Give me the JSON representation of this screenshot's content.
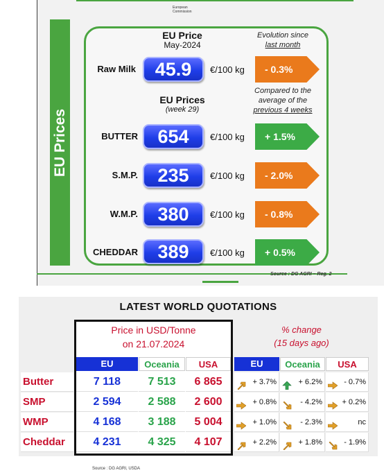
{
  "eu_panel": {
    "logo_line1": "European",
    "logo_line2": "Commission",
    "vertical_title": "EU Prices",
    "milk_header_line1": "EU Price",
    "milk_header_line2": "May-2024",
    "evolution_line1": "Evolution since",
    "evolution_line2": "last month",
    "products_header_line1": "EU Prices",
    "products_header_line2": "(week 29)",
    "compare_line1": "Compared to the",
    "compare_line2": "average of the",
    "compare_line3": "previous 4 weeks",
    "source": "Source : DG AGRI – Reg. 2",
    "rows": [
      {
        "label": "Raw Milk",
        "price": "45.9",
        "unit": "€/100 kg",
        "change": "- 0.3%",
        "color": "#ea7a1c"
      },
      {
        "label": "BUTTER",
        "price": "654",
        "unit": "€/100 kg",
        "change": "+ 1.5%",
        "color": "#3cab46"
      },
      {
        "label": "S.M.P.",
        "price": "235",
        "unit": "€/100 kg",
        "change": "- 2.0%",
        "color": "#ea7a1c"
      },
      {
        "label": "W.M.P.",
        "price": "380",
        "unit": "€/100 kg",
        "change": "- 0.8%",
        "color": "#ea7a1c"
      },
      {
        "label": "CHEDDAR",
        "price": "389",
        "unit": "€/100 kg",
        "change": "+ 0.5%",
        "color": "#3cab46"
      }
    ]
  },
  "world": {
    "title": "LATEST WORLD QUOTATIONS",
    "price_header_line1": "Price in USD/Tonne",
    "price_header_line2": "on 21.07.2024",
    "pct_header_line1": "% change",
    "pct_header_line2": "(15 days ago)",
    "columns": [
      "EU",
      "Oceania",
      "USA"
    ],
    "source": "Source : DG AGRI, USDA",
    "rows": [
      {
        "product": "Butter",
        "eu": "7 118",
        "oceania": "7 513",
        "usa": "6 865",
        "chg": [
          {
            "icon": "arrow-up-right-icon",
            "v": "+ 3.7%"
          },
          {
            "icon": "arrow-up-icon",
            "v": "+ 6.2%"
          },
          {
            "icon": "arrow-right-icon",
            "v": "- 0.7%"
          }
        ]
      },
      {
        "product": "SMP",
        "eu": "2 594",
        "oceania": "2 588",
        "usa": "2 600",
        "chg": [
          {
            "icon": "arrow-right-icon",
            "v": "+ 0.8%"
          },
          {
            "icon": "arrow-down-right-icon",
            "v": "- 4.2%"
          },
          {
            "icon": "arrow-right-icon",
            "v": "+ 0.2%"
          }
        ]
      },
      {
        "product": "WMP",
        "eu": "4 168",
        "oceania": "3 188",
        "usa": "5 004",
        "chg": [
          {
            "icon": "arrow-right-icon",
            "v": "+ 1.0%"
          },
          {
            "icon": "arrow-down-right-icon",
            "v": "- 2.3%"
          },
          {
            "icon": "arrow-right-icon",
            "v": "nc"
          }
        ]
      },
      {
        "product": "Cheddar",
        "eu": "4 231",
        "oceania": "4 325",
        "usa": "4 107",
        "chg": [
          {
            "icon": "arrow-up-right-icon",
            "v": "+ 2.2%"
          },
          {
            "icon": "arrow-up-right-icon",
            "v": "+ 1.8%"
          },
          {
            "icon": "arrow-down-right-icon",
            "v": "- 1.9%"
          }
        ]
      }
    ]
  }
}
